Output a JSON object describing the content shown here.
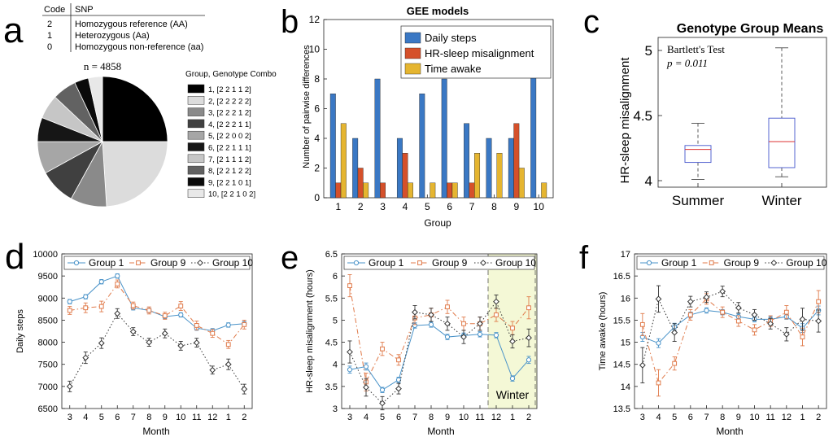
{
  "panel_letters": [
    "a",
    "b",
    "c",
    "d",
    "e",
    "f"
  ],
  "snp_table": {
    "headers": [
      "Code",
      "SNP"
    ],
    "rows": [
      {
        "code": "2",
        "label": "Homozygous reference (AA)"
      },
      {
        "code": "1",
        "label": "Heterozygous (Aa)"
      },
      {
        "code": "0",
        "label": "Homozygous non-reference (aa)"
      }
    ]
  },
  "chart_data": [
    {
      "panel": "a",
      "type": "pie",
      "title": "n = 4858",
      "legend_title": "Group, Genotype Combo",
      "labels": [
        "1, [2 2 1 1 2]",
        "2, [2 2 2 2 2]",
        "3, [2 2 2 1 2]",
        "4, [2 2 2 1 1]",
        "5, [2 2 0 0 2]",
        "6, [2 2 1 1 1]",
        "7, [2 1 1 1 2]",
        "8, [2 2 1 2 2]",
        "9, [2 2 1 0 1]",
        "10, [2 2 1 0 2]"
      ],
      "values": [
        25.0,
        24.0,
        9.0,
        9.0,
        8.0,
        6.0,
        6.0,
        6.0,
        3.5,
        3.5
      ],
      "colors": [
        "#000000",
        "#dcdcdc",
        "#8a8a8a",
        "#404040",
        "#a6a6a6",
        "#161616",
        "#c6c6c6",
        "#626262",
        "#0a0a0a",
        "#e8e8e8"
      ]
    },
    {
      "panel": "b",
      "type": "bar",
      "title": "GEE models",
      "xlabel": "Group",
      "ylabel": "Number of pairwise differences",
      "categories": [
        "1",
        "2",
        "3",
        "4",
        "5",
        "6",
        "7",
        "8",
        "9",
        "10"
      ],
      "ylim": [
        0,
        12
      ],
      "yticks": [
        0,
        2,
        4,
        6,
        8,
        10,
        12
      ],
      "legend_position": "top-right",
      "series": [
        {
          "name": "Daily steps",
          "color": "#3a78c4",
          "values": [
            7,
            4,
            8,
            4,
            7,
            8,
            5,
            4,
            4,
            9
          ]
        },
        {
          "name": "HR-sleep misalignment",
          "color": "#d5502a",
          "values": [
            1,
            2,
            1,
            3,
            0,
            1,
            1,
            0,
            5,
            0
          ]
        },
        {
          "name": "Time awake",
          "color": "#e5b530",
          "values": [
            5,
            1,
            0,
            1,
            1,
            1,
            3,
            3,
            2,
            1
          ]
        }
      ]
    },
    {
      "panel": "c",
      "type": "box",
      "title": "Genotype Group Means",
      "ylabel": "HR-sleep misalignment",
      "categories": [
        "Summer",
        "Winter"
      ],
      "ylim": [
        3.95,
        5.1
      ],
      "yticks": [
        4,
        4.5,
        5
      ],
      "annotation": {
        "test": "Bartlett's Test",
        "p": "p = 0.011"
      },
      "boxes": [
        {
          "label": "Summer",
          "whisker_low": 4.01,
          "q1": 4.14,
          "median": 4.24,
          "q3": 4.27,
          "whisker_high": 4.44
        },
        {
          "label": "Winter",
          "whisker_low": 4.03,
          "q1": 4.1,
          "median": 4.3,
          "q3": 4.48,
          "whisker_high": 5.02
        }
      ]
    },
    {
      "panel": "d",
      "type": "line",
      "ylabel": "Daily steps",
      "xlabel": "Month",
      "categories": [
        "3",
        "4",
        "5",
        "6",
        "7",
        "8",
        "9",
        "10",
        "11",
        "12",
        "1",
        "2"
      ],
      "ylim": [
        6500,
        10000
      ],
      "yticks": [
        6500,
        7000,
        7500,
        8000,
        8500,
        9000,
        9500,
        10000
      ],
      "series": [
        {
          "name": "Group 1",
          "color": "#4a93c9",
          "style": "solid",
          "marker": "circle",
          "values": [
            8920,
            9030,
            9370,
            9500,
            8780,
            8720,
            8580,
            8620,
            8320,
            8260,
            8390,
            8420
          ],
          "err": [
            50,
            50,
            50,
            50,
            50,
            50,
            50,
            50,
            50,
            50,
            50,
            50
          ]
        },
        {
          "name": "Group 9",
          "color": "#e07a4a",
          "style": "dashdot",
          "marker": "square",
          "values": [
            8720,
            8780,
            8810,
            9320,
            8830,
            8720,
            8600,
            8820,
            8380,
            8200,
            7950,
            8400
          ],
          "err": [
            90,
            110,
            120,
            90,
            80,
            80,
            80,
            100,
            100,
            90,
            90,
            100
          ]
        },
        {
          "name": "Group 10",
          "color": "#333333",
          "style": "dotted",
          "marker": "diamond",
          "values": [
            7000,
            7650,
            7980,
            8650,
            8240,
            8000,
            8200,
            7920,
            7990,
            7370,
            7500,
            6940
          ],
          "err": [
            120,
            130,
            120,
            110,
            90,
            90,
            100,
            100,
            100,
            90,
            120,
            110
          ]
        }
      ]
    },
    {
      "panel": "e",
      "type": "line",
      "ylabel": "HR-sleep misalignment (hours)",
      "xlabel": "Month",
      "categories": [
        "3",
        "4",
        "5",
        "6",
        "7",
        "8",
        "9",
        "10",
        "11",
        "12",
        "1",
        "2"
      ],
      "ylim": [
        3,
        6.5
      ],
      "yticks": [
        3,
        3.5,
        4,
        4.5,
        5,
        5.5,
        6,
        6.5
      ],
      "highlight": {
        "label": "Winter",
        "from": "12",
        "to": "2"
      },
      "series": [
        {
          "name": "Group 1",
          "color": "#4a93c9",
          "style": "solid",
          "marker": "circle",
          "values": [
            3.88,
            3.95,
            3.42,
            3.65,
            4.88,
            4.9,
            4.62,
            4.65,
            4.68,
            4.66,
            3.68,
            4.1
          ],
          "err": [
            0.08,
            0.08,
            0.06,
            0.06,
            0.06,
            0.06,
            0.06,
            0.06,
            0.06,
            0.06,
            0.06,
            0.08
          ]
        },
        {
          "name": "Group 9",
          "color": "#e07a4a",
          "style": "dashdot",
          "marker": "square",
          "values": [
            5.78,
            3.6,
            4.35,
            4.1,
            5.05,
            5.12,
            5.3,
            4.92,
            4.92,
            5.12,
            4.82,
            5.28
          ],
          "err": [
            0.25,
            0.2,
            0.15,
            0.12,
            0.15,
            0.15,
            0.15,
            0.15,
            0.15,
            0.15,
            0.15,
            0.25
          ]
        },
        {
          "name": "Group 10",
          "color": "#333333",
          "style": "dotted",
          "marker": "diamond",
          "values": [
            4.28,
            3.48,
            3.12,
            3.45,
            5.18,
            5.12,
            4.92,
            4.62,
            4.92,
            5.42,
            4.52,
            4.6
          ],
          "err": [
            0.25,
            0.2,
            0.15,
            0.12,
            0.15,
            0.15,
            0.15,
            0.15,
            0.15,
            0.15,
            0.15,
            0.2
          ]
        }
      ]
    },
    {
      "panel": "f",
      "type": "line",
      "ylabel": "Time awake (hours)",
      "xlabel": "Month",
      "categories": [
        "3",
        "4",
        "5",
        "6",
        "7",
        "8",
        "9",
        "10",
        "11",
        "12",
        "1",
        "2"
      ],
      "ylim": [
        13.5,
        17
      ],
      "yticks": [
        13.5,
        14,
        14.5,
        15,
        15.5,
        16,
        16.5,
        17
      ],
      "series": [
        {
          "name": "Group 1",
          "color": "#4a93c9",
          "style": "solid",
          "marker": "circle",
          "values": [
            15.12,
            14.98,
            15.35,
            15.62,
            15.72,
            15.68,
            15.58,
            15.52,
            15.52,
            15.58,
            15.32,
            15.72
          ],
          "err": [
            0.1,
            0.1,
            0.08,
            0.06,
            0.06,
            0.06,
            0.06,
            0.06,
            0.06,
            0.06,
            0.1,
            0.1
          ]
        },
        {
          "name": "Group 9",
          "color": "#e07a4a",
          "style": "dashdot",
          "marker": "square",
          "values": [
            15.4,
            14.08,
            14.52,
            15.62,
            15.98,
            15.68,
            15.48,
            15.28,
            15.48,
            15.68,
            15.12,
            15.92
          ],
          "err": [
            0.25,
            0.3,
            0.15,
            0.12,
            0.12,
            0.12,
            0.12,
            0.12,
            0.12,
            0.15,
            0.2,
            0.25
          ]
        },
        {
          "name": "Group 10",
          "color": "#333333",
          "style": "dotted",
          "marker": "diamond",
          "values": [
            14.48,
            15.98,
            15.22,
            15.92,
            16.02,
            16.15,
            15.78,
            15.62,
            15.42,
            15.18,
            15.52,
            15.48
          ],
          "err": [
            0.4,
            0.3,
            0.2,
            0.12,
            0.12,
            0.12,
            0.12,
            0.12,
            0.12,
            0.15,
            0.25,
            0.25
          ]
        }
      ]
    }
  ]
}
